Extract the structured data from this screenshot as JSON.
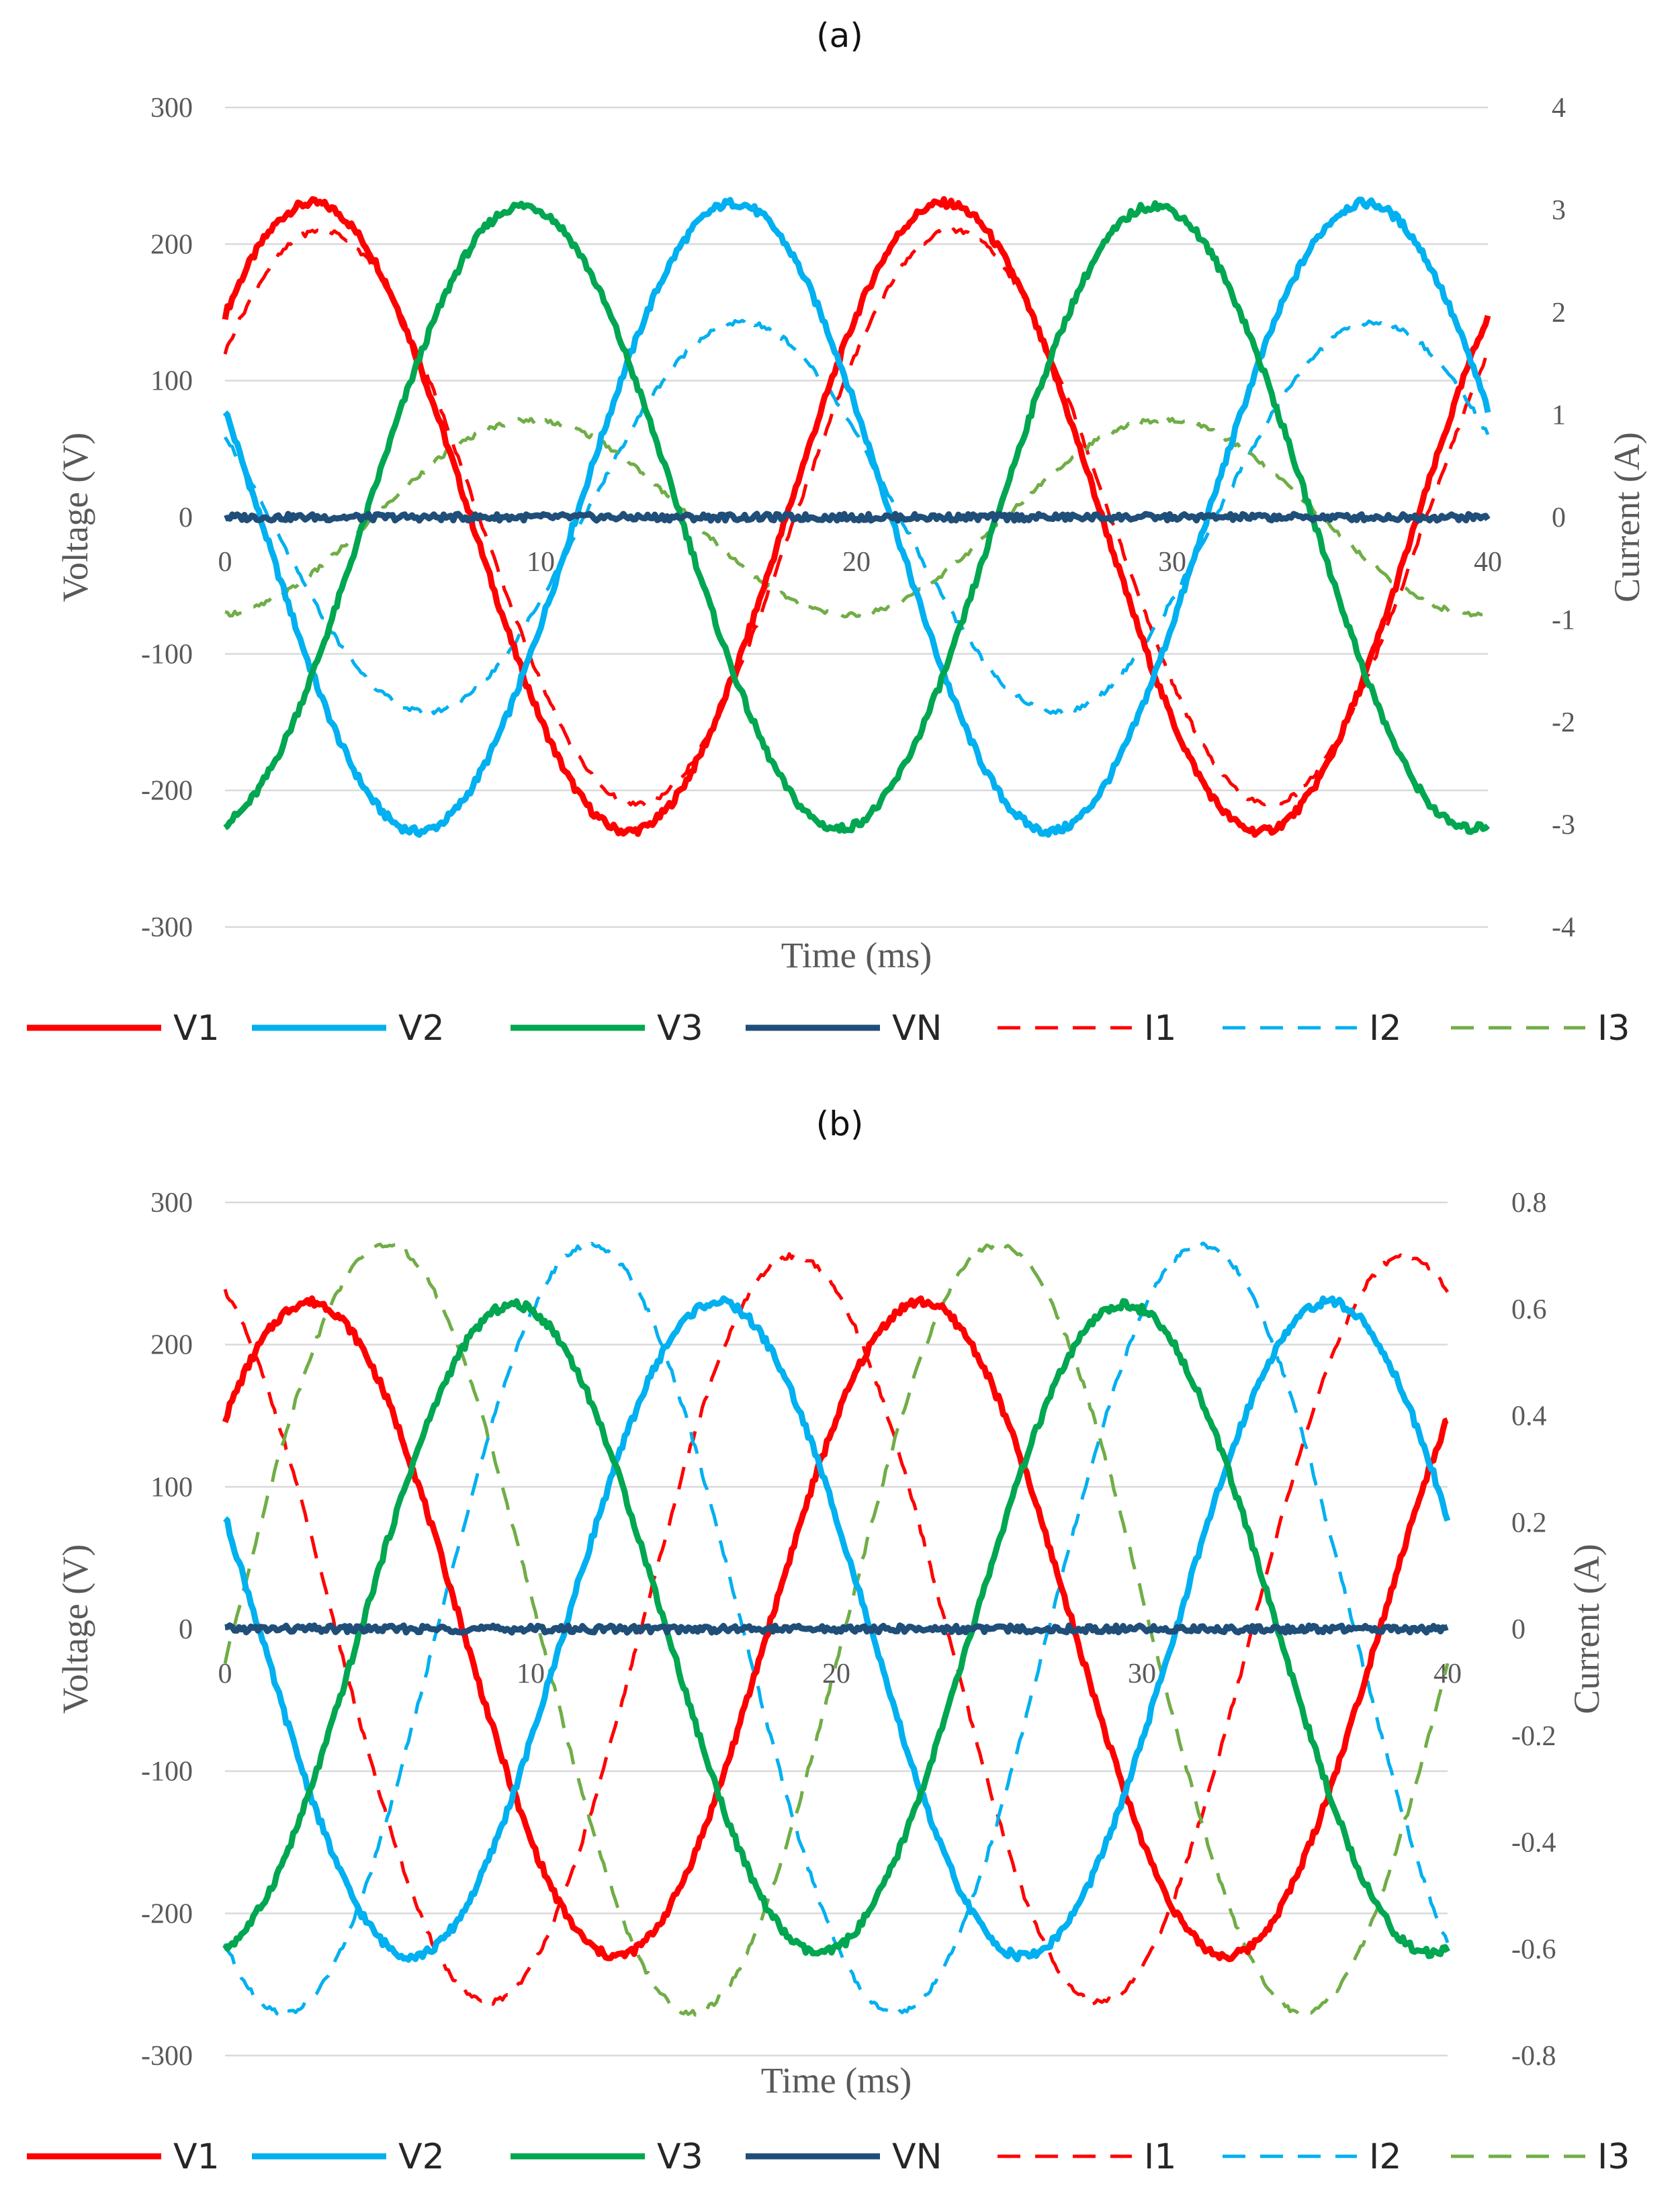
{
  "chart_data": [
    {
      "type": "line",
      "title": "(a)",
      "xlabel": "Time (ms)",
      "ylabel": "Voltage (V)",
      "y2label": "Current (A)",
      "xlim": [
        0,
        40
      ],
      "ylim": [
        -300,
        300
      ],
      "y2lim": [
        -4,
        4
      ],
      "x_ticks": [
        "0",
        "10",
        "20",
        "30",
        "40"
      ],
      "y_ticks": [
        "300",
        "200",
        "100",
        "0",
        "-100",
        "-200",
        "-300"
      ],
      "y2_ticks": [
        "4",
        "3",
        "2",
        "1",
        "0",
        "-1",
        "-2",
        "-3",
        "-4"
      ],
      "grid": true,
      "legend_position": "bottom",
      "series": [
        {
          "name": "V1",
          "axis": "left",
          "style": "solid",
          "color": "#ff0000",
          "amplitude": 230,
          "phase_deg": 40,
          "freq_hz": 50
        },
        {
          "name": "V2",
          "axis": "left",
          "style": "solid",
          "color": "#00b0f0",
          "amplitude": 230,
          "phase_deg": 160,
          "freq_hz": 50
        },
        {
          "name": "V3",
          "axis": "left",
          "style": "solid",
          "color": "#00a650",
          "amplitude": 228,
          "phase_deg": -80,
          "freq_hz": 50
        },
        {
          "name": "VN",
          "axis": "left",
          "style": "solid",
          "color": "#1f4e79",
          "amplitude": 0,
          "phase_deg": 0,
          "freq_hz": 50
        },
        {
          "name": "I1",
          "axis": "right",
          "style": "dashed",
          "color": "#ff0000",
          "amplitude": 2.8,
          "phase_deg": 35,
          "freq_hz": 50
        },
        {
          "name": "I2",
          "axis": "right",
          "style": "dashed",
          "color": "#00b0f0",
          "amplitude": 1.9,
          "phase_deg": 155,
          "freq_hz": 50
        },
        {
          "name": "I3",
          "axis": "right",
          "style": "dashed",
          "color": "#70ad47",
          "amplitude": 0.95,
          "phase_deg": -85,
          "freq_hz": 50
        }
      ]
    },
    {
      "type": "line",
      "title": "(b)",
      "xlabel": "Time (ms)",
      "ylabel": "Voltage (V)",
      "y2label": "Current (A)",
      "xlim": [
        0,
        40
      ],
      "ylim": [
        -300,
        300
      ],
      "y2lim": [
        -0.8,
        0.8
      ],
      "x_ticks": [
        "0",
        "10",
        "20",
        "30",
        "40"
      ],
      "y_ticks": [
        "300",
        "200",
        "100",
        "0",
        "-100",
        "-200",
        "-300"
      ],
      "y2_ticks": [
        "0.8",
        "0.6",
        "0.4",
        "0.2",
        "0",
        "-0.2",
        "-0.4",
        "-0.6",
        "-0.8"
      ],
      "grid": true,
      "legend_position": "bottom",
      "series": [
        {
          "name": "V1",
          "axis": "left",
          "style": "solid",
          "color": "#ff0000",
          "amplitude": 230,
          "phase_deg": 40,
          "freq_hz": 50
        },
        {
          "name": "V2",
          "axis": "left",
          "style": "solid",
          "color": "#00b0f0",
          "amplitude": 230,
          "phase_deg": 160,
          "freq_hz": 50
        },
        {
          "name": "V3",
          "axis": "left",
          "style": "solid",
          "color": "#00a650",
          "amplitude": 228,
          "phase_deg": -80,
          "freq_hz": 50
        },
        {
          "name": "VN",
          "axis": "left",
          "style": "solid",
          "color": "#1f4e79",
          "amplitude": 0,
          "phase_deg": 0,
          "freq_hz": 50
        },
        {
          "name": "I1",
          "axis": "right",
          "style": "dashed",
          "color": "#ff0000",
          "amplitude": 0.7,
          "phase_deg": 115,
          "freq_hz": 50
        },
        {
          "name": "I2",
          "axis": "right",
          "style": "dashed",
          "color": "#00b0f0",
          "amplitude": 0.72,
          "phase_deg": -125,
          "freq_hz": 50
        },
        {
          "name": "I3",
          "axis": "right",
          "style": "dashed",
          "color": "#70ad47",
          "amplitude": 0.72,
          "phase_deg": -5,
          "freq_hz": 50
        }
      ]
    }
  ]
}
